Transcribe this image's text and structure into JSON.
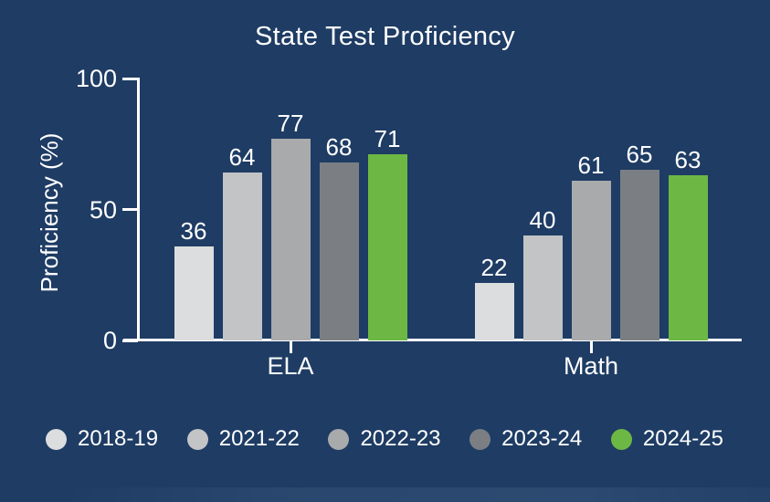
{
  "colors": {
    "background": "#1e3c64",
    "axis": "#ffffff",
    "text": "#ffffff"
  },
  "chart_data": {
    "type": "bar",
    "title": "State Test Proficiency",
    "xlabel": "",
    "ylabel": "Proficiency (%)",
    "categories": [
      "ELA",
      "Math"
    ],
    "series": [
      {
        "name": "2018-19",
        "color": "#dcdddf",
        "values": [
          36,
          22
        ]
      },
      {
        "name": "2021-22",
        "color": "#c3c4c6",
        "values": [
          64,
          40
        ]
      },
      {
        "name": "2022-23",
        "color": "#a9aaac",
        "values": [
          77,
          61
        ]
      },
      {
        "name": "2023-24",
        "color": "#7b7f84",
        "values": [
          68,
          65
        ]
      },
      {
        "name": "2024-25",
        "color": "#6db844",
        "values": [
          71,
          63
        ]
      }
    ],
    "ylim": [
      0,
      100
    ],
    "yticks": [
      0,
      50,
      100
    ],
    "grid": false,
    "bar_value_labels": true,
    "legend_position": "bottom"
  }
}
